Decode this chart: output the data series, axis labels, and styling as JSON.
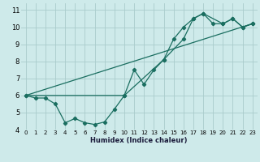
{
  "xlabel": "Humidex (Indice chaleur)",
  "xlim": [
    -0.5,
    23.5
  ],
  "ylim": [
    4,
    11.4
  ],
  "xticks": [
    0,
    1,
    2,
    3,
    4,
    5,
    6,
    7,
    8,
    9,
    10,
    11,
    12,
    13,
    14,
    15,
    16,
    17,
    18,
    19,
    20,
    21,
    22,
    23
  ],
  "yticks": [
    4,
    5,
    6,
    7,
    8,
    9,
    10,
    11
  ],
  "bg_color": "#ceeaea",
  "grid_color": "#aacccc",
  "line_color": "#1a6e60",
  "line1_x": [
    0,
    1,
    2,
    3,
    4,
    5,
    6,
    7,
    8,
    9,
    10,
    11,
    12,
    13,
    14,
    15,
    16,
    17,
    18,
    19,
    20,
    21,
    22,
    23
  ],
  "line1_y": [
    6.0,
    5.85,
    5.85,
    5.5,
    4.4,
    4.65,
    4.4,
    4.3,
    4.45,
    5.2,
    6.0,
    7.5,
    6.65,
    7.5,
    8.1,
    9.3,
    10.0,
    10.5,
    10.8,
    10.2,
    10.2,
    10.5,
    10.0,
    10.2
  ],
  "line2_x": [
    0,
    10,
    14,
    16,
    17,
    18,
    20,
    21,
    22,
    23
  ],
  "line2_y": [
    6.0,
    6.0,
    8.1,
    9.3,
    10.5,
    10.8,
    10.2,
    10.5,
    10.0,
    10.2
  ],
  "line3_x": [
    0,
    23
  ],
  "line3_y": [
    6.0,
    10.2
  ]
}
